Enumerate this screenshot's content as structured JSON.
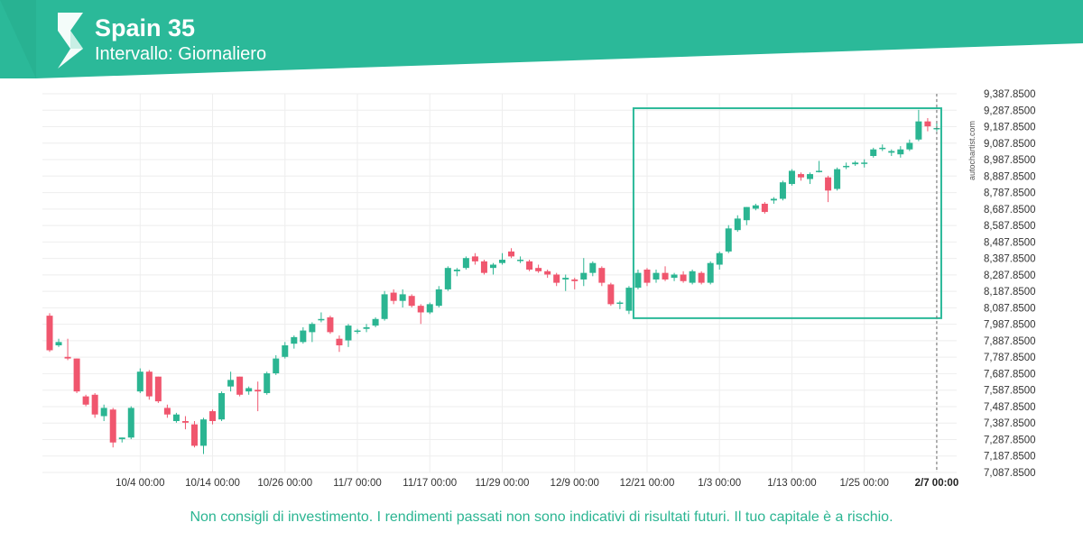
{
  "header": {
    "title": "Spain 35",
    "subtitle": "Intervallo: Giornaliero"
  },
  "footer": {
    "disclaimer": "Non consigli di investimento. I rendimenti passati non sono indicativi di risultati futuri. Il tuo capitale è a rischio."
  },
  "watermark": "autochartist.com",
  "colors": {
    "brand": "#2bb999",
    "up": "#2bb592",
    "down": "#f0566e",
    "grid": "#eeeeee",
    "box": "#2bb999"
  },
  "chart_data": {
    "type": "candlestick",
    "title": "Spain 35",
    "ylim": [
      7087.85,
      9387.85
    ],
    "y_ticks": [
      "9,387.8500",
      "9,287.8500",
      "9,187.8500",
      "9,087.8500",
      "8,987.8500",
      "8,887.8500",
      "8,787.8500",
      "8,687.8500",
      "8,587.8500",
      "8,487.8500",
      "8,387.8500",
      "8,287.8500",
      "8,187.8500",
      "8,087.8500",
      "7,987.8500",
      "7,887.8500",
      "7,787.8500",
      "7,687.8500",
      "7,587.8500",
      "7,487.8500",
      "7,387.8500",
      "7,287.8500",
      "7,187.8500",
      "7,087.8500"
    ],
    "x_ticks": [
      {
        "label": "10/4 00:00",
        "index": 10
      },
      {
        "label": "10/14 00:00",
        "index": 18
      },
      {
        "label": "10/26 00:00",
        "index": 26
      },
      {
        "label": "11/7 00:00",
        "index": 34
      },
      {
        "label": "11/17 00:00",
        "index": 42
      },
      {
        "label": "11/29 00:00",
        "index": 50
      },
      {
        "label": "12/9 00:00",
        "index": 58
      },
      {
        "label": "12/21 00:00",
        "index": 66
      },
      {
        "label": "1/3 00:00",
        "index": 74
      },
      {
        "label": "1/13 00:00",
        "index": 82
      },
      {
        "label": "1/25 00:00",
        "index": 90
      },
      {
        "label": "2/7 00:00",
        "index": 98
      }
    ],
    "highlight_box": {
      "start_index": 64.5,
      "end_index": 98.5,
      "top": 9300,
      "bottom": 8025
    },
    "current_marker_label": "2/7 00:00",
    "candles": [
      {
        "o": 8040,
        "h": 8055,
        "l": 7820,
        "c": 7830
      },
      {
        "o": 7860,
        "h": 7900,
        "l": 7850,
        "c": 7880
      },
      {
        "o": 7790,
        "h": 7900,
        "l": 7770,
        "c": 7780
      },
      {
        "o": 7780,
        "h": 7780,
        "l": 7570,
        "c": 7580
      },
      {
        "o": 7550,
        "h": 7560,
        "l": 7490,
        "c": 7500
      },
      {
        "o": 7560,
        "h": 7570,
        "l": 7420,
        "c": 7440
      },
      {
        "o": 7430,
        "h": 7500,
        "l": 7400,
        "c": 7480
      },
      {
        "o": 7470,
        "h": 7480,
        "l": 7240,
        "c": 7270
      },
      {
        "o": 7290,
        "h": 7300,
        "l": 7270,
        "c": 7300
      },
      {
        "o": 7300,
        "h": 7490,
        "l": 7290,
        "c": 7480
      },
      {
        "o": 7580,
        "h": 7720,
        "l": 7570,
        "c": 7700
      },
      {
        "o": 7700,
        "h": 7710,
        "l": 7530,
        "c": 7550
      },
      {
        "o": 7670,
        "h": 7670,
        "l": 7510,
        "c": 7520
      },
      {
        "o": 7480,
        "h": 7500,
        "l": 7420,
        "c": 7440
      },
      {
        "o": 7400,
        "h": 7450,
        "l": 7390,
        "c": 7440
      },
      {
        "o": 7400,
        "h": 7430,
        "l": 7350,
        "c": 7390
      },
      {
        "o": 7380,
        "h": 7400,
        "l": 7240,
        "c": 7250
      },
      {
        "o": 7250,
        "h": 7420,
        "l": 7200,
        "c": 7410
      },
      {
        "o": 7460,
        "h": 7470,
        "l": 7380,
        "c": 7400
      },
      {
        "o": 7410,
        "h": 7580,
        "l": 7400,
        "c": 7570
      },
      {
        "o": 7610,
        "h": 7700,
        "l": 7580,
        "c": 7650
      },
      {
        "o": 7670,
        "h": 7670,
        "l": 7550,
        "c": 7560
      },
      {
        "o": 7580,
        "h": 7610,
        "l": 7560,
        "c": 7600
      },
      {
        "o": 7590,
        "h": 7640,
        "l": 7460,
        "c": 7580
      },
      {
        "o": 7570,
        "h": 7700,
        "l": 7560,
        "c": 7690
      },
      {
        "o": 7690,
        "h": 7800,
        "l": 7680,
        "c": 7780
      },
      {
        "o": 7790,
        "h": 7880,
        "l": 7780,
        "c": 7860
      },
      {
        "o": 7870,
        "h": 7920,
        "l": 7840,
        "c": 7910
      },
      {
        "o": 7880,
        "h": 7970,
        "l": 7870,
        "c": 7950
      },
      {
        "o": 7940,
        "h": 8000,
        "l": 7880,
        "c": 7990
      },
      {
        "o": 8020,
        "h": 8060,
        "l": 8000,
        "c": 8020
      },
      {
        "o": 8030,
        "h": 8040,
        "l": 7930,
        "c": 7940
      },
      {
        "o": 7900,
        "h": 7920,
        "l": 7820,
        "c": 7860
      },
      {
        "o": 7890,
        "h": 7990,
        "l": 7850,
        "c": 7980
      },
      {
        "o": 7950,
        "h": 7960,
        "l": 7930,
        "c": 7950
      },
      {
        "o": 7960,
        "h": 7990,
        "l": 7940,
        "c": 7970
      },
      {
        "o": 7980,
        "h": 8030,
        "l": 7970,
        "c": 8020
      },
      {
        "o": 8020,
        "h": 8190,
        "l": 8010,
        "c": 8170
      },
      {
        "o": 8180,
        "h": 8200,
        "l": 8110,
        "c": 8130
      },
      {
        "o": 8130,
        "h": 8200,
        "l": 8090,
        "c": 8170
      },
      {
        "o": 8160,
        "h": 8170,
        "l": 8090,
        "c": 8100
      },
      {
        "o": 8100,
        "h": 8110,
        "l": 7990,
        "c": 8060
      },
      {
        "o": 8060,
        "h": 8120,
        "l": 8050,
        "c": 8110
      },
      {
        "o": 8100,
        "h": 8220,
        "l": 8090,
        "c": 8200
      },
      {
        "o": 8200,
        "h": 8340,
        "l": 8190,
        "c": 8330
      },
      {
        "o": 8310,
        "h": 8330,
        "l": 8280,
        "c": 8320
      },
      {
        "o": 8330,
        "h": 8400,
        "l": 8320,
        "c": 8390
      },
      {
        "o": 8400,
        "h": 8420,
        "l": 8350,
        "c": 8370
      },
      {
        "o": 8370,
        "h": 8380,
        "l": 8290,
        "c": 8300
      },
      {
        "o": 8330,
        "h": 8360,
        "l": 8290,
        "c": 8350
      },
      {
        "o": 8360,
        "h": 8420,
        "l": 8350,
        "c": 8380
      },
      {
        "o": 8430,
        "h": 8450,
        "l": 8390,
        "c": 8400
      },
      {
        "o": 8380,
        "h": 8400,
        "l": 8360,
        "c": 8380
      },
      {
        "o": 8370,
        "h": 8380,
        "l": 8310,
        "c": 8320
      },
      {
        "o": 8330,
        "h": 8350,
        "l": 8300,
        "c": 8310
      },
      {
        "o": 8310,
        "h": 8320,
        "l": 8270,
        "c": 8290
      },
      {
        "o": 8290,
        "h": 8300,
        "l": 8220,
        "c": 8240
      },
      {
        "o": 8260,
        "h": 8290,
        "l": 8190,
        "c": 8270
      },
      {
        "o": 8260,
        "h": 8270,
        "l": 8200,
        "c": 8250
      },
      {
        "o": 8260,
        "h": 8390,
        "l": 8220,
        "c": 8300
      },
      {
        "o": 8300,
        "h": 8370,
        "l": 8280,
        "c": 8360
      },
      {
        "o": 8330,
        "h": 8340,
        "l": 8220,
        "c": 8240
      },
      {
        "o": 8230,
        "h": 8240,
        "l": 8100,
        "c": 8110
      },
      {
        "o": 8120,
        "h": 8130,
        "l": 8080,
        "c": 8120
      },
      {
        "o": 8070,
        "h": 8220,
        "l": 8050,
        "c": 8210
      },
      {
        "o": 8210,
        "h": 8320,
        "l": 8200,
        "c": 8300
      },
      {
        "o": 8320,
        "h": 8330,
        "l": 8220,
        "c": 8240
      },
      {
        "o": 8260,
        "h": 8320,
        "l": 8240,
        "c": 8300
      },
      {
        "o": 8300,
        "h": 8340,
        "l": 8250,
        "c": 8260
      },
      {
        "o": 8270,
        "h": 8300,
        "l": 8250,
        "c": 8290
      },
      {
        "o": 8290,
        "h": 8310,
        "l": 8240,
        "c": 8250
      },
      {
        "o": 8240,
        "h": 8320,
        "l": 8230,
        "c": 8310
      },
      {
        "o": 8300,
        "h": 8310,
        "l": 8230,
        "c": 8240
      },
      {
        "o": 8240,
        "h": 8370,
        "l": 8230,
        "c": 8360
      },
      {
        "o": 8350,
        "h": 8430,
        "l": 8320,
        "c": 8420
      },
      {
        "o": 8430,
        "h": 8590,
        "l": 8420,
        "c": 8570
      },
      {
        "o": 8560,
        "h": 8650,
        "l": 8550,
        "c": 8630
      },
      {
        "o": 8620,
        "h": 8700,
        "l": 8590,
        "c": 8700
      },
      {
        "o": 8690,
        "h": 8720,
        "l": 8680,
        "c": 8710
      },
      {
        "o": 8720,
        "h": 8730,
        "l": 8660,
        "c": 8670
      },
      {
        "o": 8740,
        "h": 8760,
        "l": 8720,
        "c": 8750
      },
      {
        "o": 8750,
        "h": 8860,
        "l": 8740,
        "c": 8850
      },
      {
        "o": 8840,
        "h": 8930,
        "l": 8830,
        "c": 8920
      },
      {
        "o": 8900,
        "h": 8910,
        "l": 8860,
        "c": 8880
      },
      {
        "o": 8870,
        "h": 8910,
        "l": 8840,
        "c": 8900
      },
      {
        "o": 8920,
        "h": 8980,
        "l": 8910,
        "c": 8920
      },
      {
        "o": 8880,
        "h": 8890,
        "l": 8730,
        "c": 8800
      },
      {
        "o": 8810,
        "h": 8940,
        "l": 8800,
        "c": 8930
      },
      {
        "o": 8950,
        "h": 8970,
        "l": 8930,
        "c": 8950
      },
      {
        "o": 8960,
        "h": 8980,
        "l": 8950,
        "c": 8970
      },
      {
        "o": 8970,
        "h": 8990,
        "l": 8940,
        "c": 8970
      },
      {
        "o": 9010,
        "h": 9060,
        "l": 9000,
        "c": 9050
      },
      {
        "o": 9060,
        "h": 9080,
        "l": 9040,
        "c": 9060
      },
      {
        "o": 9030,
        "h": 9050,
        "l": 9010,
        "c": 9040
      },
      {
        "o": 9020,
        "h": 9070,
        "l": 9000,
        "c": 9050
      },
      {
        "o": 9050,
        "h": 9110,
        "l": 9040,
        "c": 9090
      },
      {
        "o": 9110,
        "h": 9290,
        "l": 9100,
        "c": 9220
      },
      {
        "o": 9220,
        "h": 9240,
        "l": 9160,
        "c": 9190
      },
      {
        "o": 9180,
        "h": 9210,
        "l": 9160,
        "c": 9180
      }
    ]
  }
}
